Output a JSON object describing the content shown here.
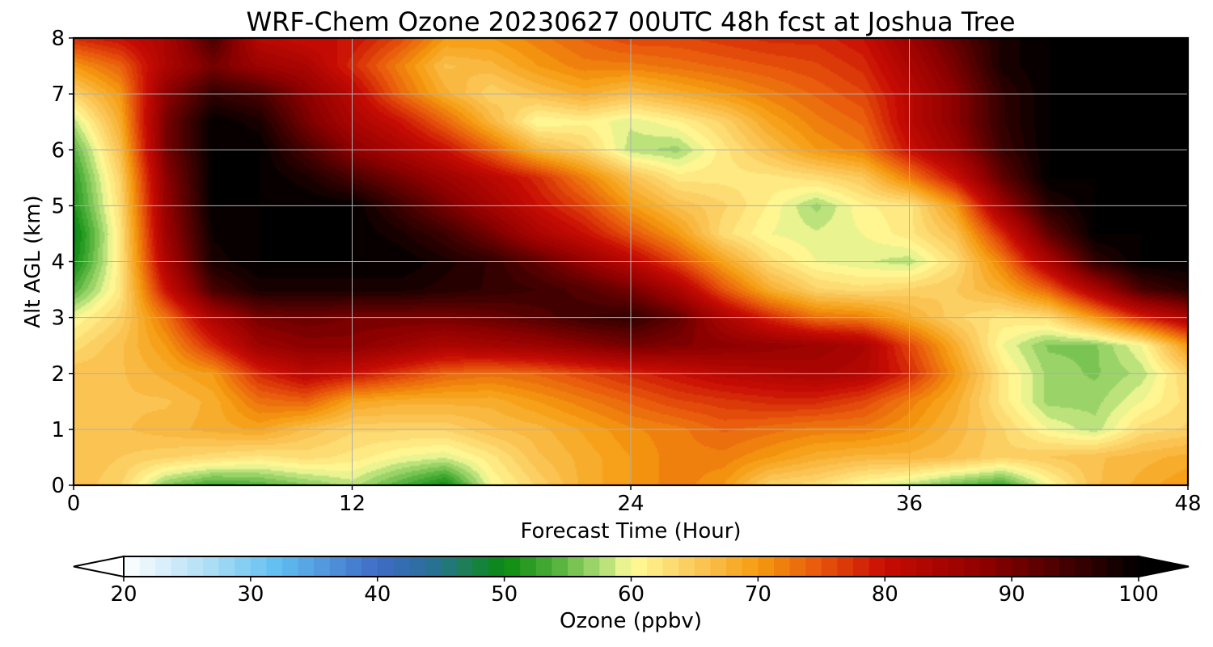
{
  "chart_data": {
    "type": "heatmap",
    "title": "WRF-Chem Ozone  20230627 00UTC 48h fcst at Joshua Tree",
    "xlabel": "Forecast Time (Hour)",
    "ylabel": "Alt AGL (km)",
    "xlim": [
      0,
      48
    ],
    "ylim": [
      0,
      8
    ],
    "xticks": [
      "0",
      "12",
      "24",
      "36",
      "48"
    ],
    "yticks": [
      "0",
      "1",
      "2",
      "3",
      "4",
      "5",
      "6",
      "7",
      "8"
    ],
    "grid": true,
    "colorbar": {
      "label": "Ozone  (ppbv)",
      "ticks": [
        "20",
        "30",
        "40",
        "50",
        "60",
        "70",
        "80",
        "90",
        "100"
      ],
      "range": [
        20,
        100
      ],
      "extend": "both",
      "color_stops": [
        [
          20,
          "#ffffff"
        ],
        [
          27,
          "#a9dcf5"
        ],
        [
          32,
          "#62bff1"
        ],
        [
          40,
          "#3f6cc6"
        ],
        [
          44,
          "#2a6f9c"
        ],
        [
          47,
          "#1c7f55"
        ],
        [
          50,
          "#0a8a10"
        ],
        [
          54,
          "#4fb03a"
        ],
        [
          58,
          "#b8e07a"
        ],
        [
          60,
          "#fffc9a"
        ],
        [
          65,
          "#fbc95b"
        ],
        [
          70,
          "#f59b10"
        ],
        [
          75,
          "#e7540b"
        ],
        [
          80,
          "#c80c04"
        ],
        [
          88,
          "#8d0000"
        ],
        [
          95,
          "#3c0000"
        ],
        [
          100,
          "#000000"
        ]
      ]
    },
    "hours": [
      0,
      2,
      4,
      6,
      8,
      10,
      12,
      14,
      16,
      18,
      20,
      22,
      24,
      26,
      28,
      30,
      32,
      34,
      36,
      38,
      40,
      42,
      44,
      46,
      48
    ],
    "altitudes_km": [
      0,
      0.5,
      1,
      1.5,
      2,
      2.5,
      3,
      3.5,
      4,
      4.5,
      5,
      5.5,
      6,
      6.5,
      7,
      7.5,
      8
    ],
    "ozone_ppbv": [
      [
        66,
        64,
        56,
        53,
        54,
        56,
        58,
        54,
        50,
        60,
        64,
        68,
        70,
        72,
        70,
        64,
        63,
        60,
        58,
        55,
        53,
        60,
        66,
        68,
        70
      ],
      [
        66,
        65,
        64,
        63,
        62,
        63,
        62,
        60,
        59,
        62,
        66,
        68,
        70,
        72,
        72,
        70,
        68,
        67,
        67,
        66,
        64,
        65,
        66,
        67,
        68
      ],
      [
        65,
        66,
        67,
        68,
        69,
        66,
        64,
        64,
        64,
        66,
        67,
        69,
        71,
        72,
        74,
        73,
        72,
        72,
        70,
        67,
        64,
        60,
        58,
        63,
        64
      ],
      [
        66,
        66,
        66,
        68,
        73,
        74,
        69,
        68,
        68,
        68,
        70,
        72,
        74,
        76,
        77,
        78,
        78,
        76,
        72,
        68,
        62,
        57,
        57,
        60,
        63
      ],
      [
        66,
        66,
        68,
        70,
        78,
        82,
        80,
        77,
        74,
        73,
        74,
        76,
        78,
        80,
        82,
        83,
        84,
        83,
        78,
        70,
        62,
        57,
        56,
        58,
        64
      ],
      [
        63,
        66,
        70,
        78,
        86,
        88,
        88,
        86,
        84,
        85,
        86,
        88,
        90,
        89,
        88,
        87,
        86,
        84,
        76,
        68,
        60,
        56,
        56,
        60,
        70
      ],
      [
        60,
        64,
        73,
        84,
        90,
        91,
        90,
        90,
        90,
        91,
        93,
        95,
        96,
        92,
        84,
        78,
        73,
        72,
        68,
        64,
        62,
        63,
        70,
        78,
        84
      ],
      [
        54,
        62,
        80,
        94,
        98,
        98,
        98,
        98,
        97,
        96,
        95,
        93,
        90,
        84,
        75,
        68,
        64,
        63,
        64,
        65,
        68,
        74,
        84,
        94,
        97
      ],
      [
        50,
        62,
        84,
        98,
        100,
        100,
        100,
        100,
        98,
        96,
        92,
        87,
        82,
        76,
        69,
        63,
        60,
        59,
        58,
        63,
        72,
        84,
        96,
        100,
        100
      ],
      [
        49,
        62,
        86,
        99,
        100,
        100,
        100,
        98,
        95,
        90,
        84,
        80,
        75,
        70,
        63,
        60,
        59,
        60,
        62,
        66,
        78,
        92,
        100,
        100,
        100
      ],
      [
        51,
        63,
        87,
        100,
        100,
        100,
        100,
        95,
        90,
        85,
        80,
        76,
        70,
        66,
        64,
        61,
        57,
        61,
        62,
        70,
        86,
        97,
        100,
        100,
        100
      ],
      [
        52,
        64,
        88,
        100,
        100,
        98,
        94,
        90,
        86,
        82,
        78,
        72,
        66,
        62,
        62,
        62,
        63,
        65,
        72,
        80,
        92,
        100,
        100,
        100,
        100
      ],
      [
        54,
        66,
        90,
        100,
        100,
        94,
        88,
        84,
        80,
        74,
        67,
        64,
        58,
        57,
        62,
        66,
        70,
        72,
        80,
        86,
        95,
        100,
        100,
        100,
        100
      ],
      [
        58,
        68,
        90,
        100,
        98,
        90,
        84,
        80,
        74,
        67,
        60,
        61,
        59,
        61,
        64,
        69,
        72,
        74,
        82,
        88,
        96,
        100,
        100,
        100,
        100
      ],
      [
        64,
        70,
        88,
        96,
        94,
        88,
        82,
        74,
        68,
        64,
        66,
        68,
        66,
        68,
        70,
        72,
        74,
        76,
        82,
        88,
        96,
        100,
        100,
        100,
        100
      ],
      [
        70,
        74,
        84,
        90,
        86,
        84,
        78,
        72,
        66,
        67,
        70,
        72,
        72,
        73,
        74,
        75,
        76,
        78,
        84,
        90,
        98,
        100,
        100,
        100,
        100
      ],
      [
        78,
        80,
        84,
        94,
        82,
        80,
        80,
        76,
        70,
        70,
        72,
        74,
        76,
        76,
        77,
        78,
        78,
        80,
        86,
        92,
        98,
        100,
        100,
        100,
        100
      ]
    ]
  }
}
